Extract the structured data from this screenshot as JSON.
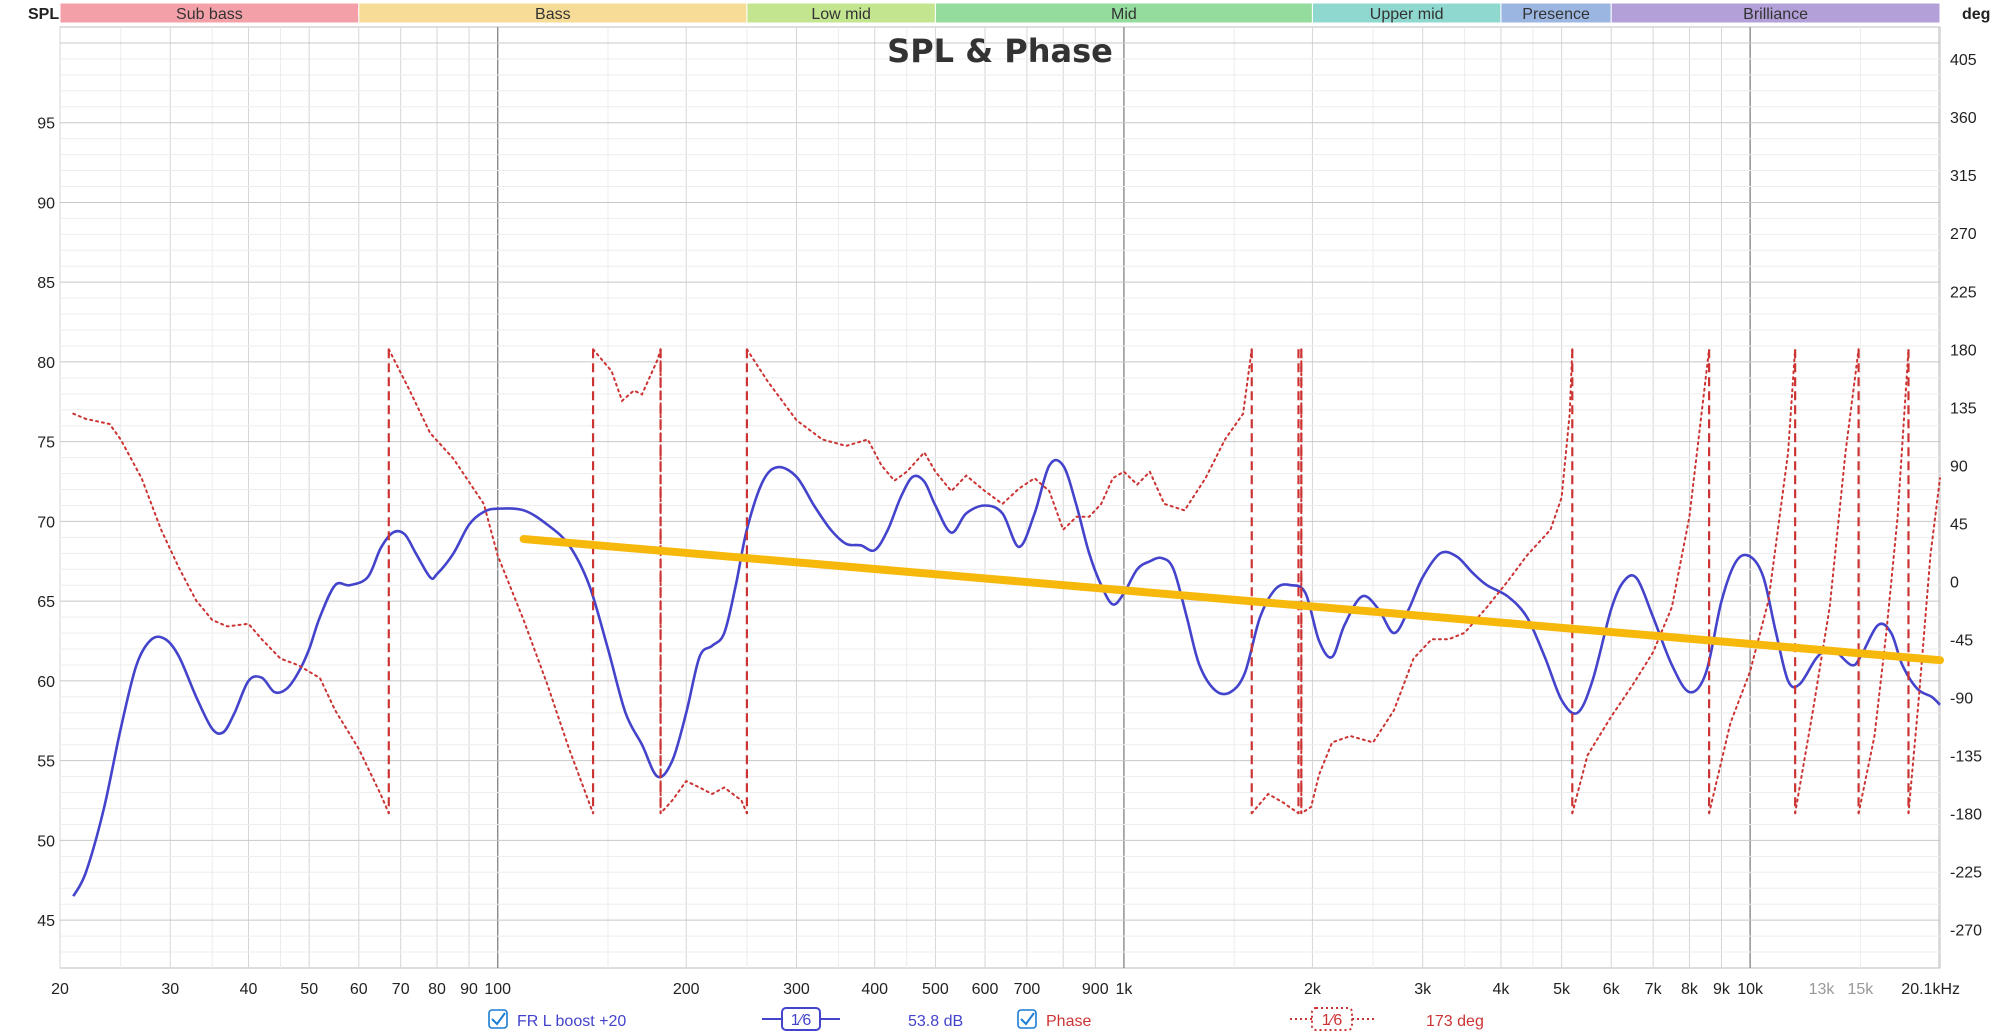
{
  "chart_data": {
    "type": "line",
    "title": "SPL & Phase",
    "y_left_label": "SPL",
    "y_right_label": "deg",
    "x_unit": "Hz",
    "x_scale": "log",
    "xlim": [
      20,
      20100
    ],
    "ylim_left": [
      42,
      101
    ],
    "ylim_right": [
      -300,
      430
    ],
    "grid": true,
    "x_ticks": [
      {
        "v": 20,
        "label": "20"
      },
      {
        "v": 30,
        "label": "30"
      },
      {
        "v": 40,
        "label": "40"
      },
      {
        "v": 50,
        "label": "50"
      },
      {
        "v": 60,
        "label": "60"
      },
      {
        "v": 70,
        "label": "70"
      },
      {
        "v": 80,
        "label": "80"
      },
      {
        "v": 90,
        "label": "90"
      },
      {
        "v": 100,
        "label": "100"
      },
      {
        "v": 200,
        "label": "200"
      },
      {
        "v": 300,
        "label": "300"
      },
      {
        "v": 400,
        "label": "400"
      },
      {
        "v": 500,
        "label": "500"
      },
      {
        "v": 600,
        "label": "600"
      },
      {
        "v": 700,
        "label": "700"
      },
      {
        "v": 900,
        "label": "900"
      },
      {
        "v": 1000,
        "label": "1k"
      },
      {
        "v": 2000,
        "label": "2k"
      },
      {
        "v": 3000,
        "label": "3k"
      },
      {
        "v": 4000,
        "label": "4k"
      },
      {
        "v": 5000,
        "label": "5k"
      },
      {
        "v": 6000,
        "label": "6k"
      },
      {
        "v": 7000,
        "label": "7k"
      },
      {
        "v": 8000,
        "label": "8k"
      },
      {
        "v": 9000,
        "label": "9k"
      },
      {
        "v": 10000,
        "label": "10k"
      },
      {
        "v": 13000,
        "label": "13k",
        "faded": true
      },
      {
        "v": 15000,
        "label": "15k",
        "faded": true
      },
      {
        "v": 20100,
        "label": "20.1kHz"
      }
    ],
    "y_left_ticks": [
      45,
      50,
      55,
      60,
      65,
      70,
      75,
      80,
      85,
      90,
      95
    ],
    "y_right_ticks": [
      -270,
      -225,
      -180,
      -135,
      -90,
      -45,
      0,
      45,
      90,
      135,
      180,
      225,
      270,
      315,
      360,
      405
    ],
    "bands": [
      {
        "label": "Sub bass",
        "from": 20,
        "to": 60,
        "color": "#f4a0a8"
      },
      {
        "label": "Bass",
        "from": 60,
        "to": 250,
        "color": "#f6dc96"
      },
      {
        "label": "Low mid",
        "from": 250,
        "to": 500,
        "color": "#c3e58f"
      },
      {
        "label": "Mid",
        "from": 500,
        "to": 2000,
        "color": "#93dc9e"
      },
      {
        "label": "Upper mid",
        "from": 2000,
        "to": 4000,
        "color": "#8ed8cf"
      },
      {
        "label": "Presence",
        "from": 4000,
        "to": 6000,
        "color": "#9cb6e2"
      },
      {
        "label": "Brilliance",
        "from": 6000,
        "to": 20100,
        "color": "#b3a0d8"
      }
    ],
    "series": [
      {
        "name": "FR L boost +20",
        "axis": "left",
        "color": "#4343cc",
        "points": [
          [
            21,
            46.5
          ],
          [
            22,
            48
          ],
          [
            23.5,
            52
          ],
          [
            25,
            57
          ],
          [
            26.5,
            61
          ],
          [
            28,
            62.6
          ],
          [
            29.5,
            62.6
          ],
          [
            31,
            61.5
          ],
          [
            33,
            59
          ],
          [
            35,
            57
          ],
          [
            36.5,
            56.8
          ],
          [
            38,
            58
          ],
          [
            40,
            60
          ],
          [
            42,
            60.2
          ],
          [
            44,
            59.3
          ],
          [
            46,
            59.5
          ],
          [
            48,
            60.5
          ],
          [
            50,
            62
          ],
          [
            52,
            64
          ],
          [
            55,
            66
          ],
          [
            58,
            66
          ],
          [
            62,
            66.5
          ],
          [
            65,
            68.3
          ],
          [
            68,
            69.3
          ],
          [
            71,
            69.2
          ],
          [
            74,
            68
          ],
          [
            78,
            66.5
          ],
          [
            80,
            66.7
          ],
          [
            85,
            68
          ],
          [
            90,
            69.8
          ],
          [
            95,
            70.6
          ],
          [
            100,
            70.8
          ],
          [
            110,
            70.7
          ],
          [
            120,
            69.8
          ],
          [
            130,
            68.5
          ],
          [
            140,
            66
          ],
          [
            150,
            62
          ],
          [
            160,
            58
          ],
          [
            170,
            56
          ],
          [
            180,
            54
          ],
          [
            190,
            55
          ],
          [
            200,
            58
          ],
          [
            210,
            61.5
          ],
          [
            220,
            62.2
          ],
          [
            230,
            63
          ],
          [
            240,
            66
          ],
          [
            250,
            69.5
          ],
          [
            265,
            72.5
          ],
          [
            280,
            73.4
          ],
          [
            300,
            72.8
          ],
          [
            320,
            71
          ],
          [
            340,
            69.5
          ],
          [
            360,
            68.6
          ],
          [
            380,
            68.5
          ],
          [
            400,
            68.2
          ],
          [
            420,
            69.5
          ],
          [
            440,
            71.5
          ],
          [
            460,
            72.8
          ],
          [
            480,
            72.5
          ],
          [
            500,
            71
          ],
          [
            530,
            69.3
          ],
          [
            560,
            70.5
          ],
          [
            600,
            71
          ],
          [
            640,
            70.5
          ],
          [
            680,
            68.4
          ],
          [
            720,
            70.5
          ],
          [
            760,
            73.5
          ],
          [
            800,
            73.5
          ],
          [
            840,
            71
          ],
          [
            880,
            68
          ],
          [
            920,
            66
          ],
          [
            960,
            64.8
          ],
          [
            1000,
            65.5
          ],
          [
            1050,
            67
          ],
          [
            1100,
            67.5
          ],
          [
            1150,
            67.7
          ],
          [
            1200,
            67
          ],
          [
            1260,
            64
          ],
          [
            1320,
            61
          ],
          [
            1400,
            59.4
          ],
          [
            1480,
            59.3
          ],
          [
            1560,
            60.5
          ],
          [
            1650,
            64
          ],
          [
            1750,
            65.8
          ],
          [
            1850,
            66
          ],
          [
            1950,
            65.5
          ],
          [
            2050,
            62.5
          ],
          [
            2150,
            61.5
          ],
          [
            2250,
            63.5
          ],
          [
            2400,
            65.3
          ],
          [
            2550,
            64.5
          ],
          [
            2700,
            63
          ],
          [
            2850,
            64.5
          ],
          [
            3000,
            66.5
          ],
          [
            3200,
            68
          ],
          [
            3400,
            67.8
          ],
          [
            3600,
            66.8
          ],
          [
            3800,
            66
          ],
          [
            4100,
            65.3
          ],
          [
            4400,
            64
          ],
          [
            4700,
            61.5
          ],
          [
            5000,
            58.8
          ],
          [
            5300,
            58
          ],
          [
            5600,
            60
          ],
          [
            6000,
            64.5
          ],
          [
            6300,
            66.3
          ],
          [
            6600,
            66.4
          ],
          [
            7000,
            64
          ],
          [
            7500,
            61
          ],
          [
            8000,
            59.3
          ],
          [
            8500,
            60.5
          ],
          [
            9000,
            65
          ],
          [
            9500,
            67.5
          ],
          [
            10000,
            67.8
          ],
          [
            10500,
            66.5
          ],
          [
            11000,
            63
          ],
          [
            11500,
            60
          ],
          [
            12000,
            59.8
          ],
          [
            12800,
            61.5
          ],
          [
            13500,
            62
          ],
          [
            14500,
            61
          ],
          [
            15000,
            61.5
          ],
          [
            16000,
            63.5
          ],
          [
            16800,
            63
          ],
          [
            17500,
            61
          ],
          [
            18500,
            59.5
          ],
          [
            19500,
            59
          ],
          [
            20100,
            58.5
          ]
        ]
      },
      {
        "name": "Phase",
        "axis": "right",
        "color": "#cc3333",
        "style": "dotted",
        "points": [
          [
            21,
            130
          ],
          [
            22,
            126
          ],
          [
            24,
            122
          ],
          [
            25,
            110
          ],
          [
            27,
            80
          ],
          [
            29,
            40
          ],
          [
            31,
            10
          ],
          [
            33,
            -15
          ],
          [
            35,
            -30
          ],
          [
            37,
            -35
          ],
          [
            40,
            -33
          ],
          [
            42,
            -45
          ],
          [
            45,
            -60
          ],
          [
            48,
            -65
          ],
          [
            52,
            -75
          ],
          [
            55,
            -100
          ],
          [
            60,
            -130
          ],
          [
            65,
            -165
          ],
          [
            67,
            -180
          ],
          null,
          [
            67,
            180
          ],
          [
            72,
            150
          ],
          [
            78,
            115
          ],
          [
            85,
            95
          ],
          [
            95,
            60
          ],
          [
            100,
            20
          ],
          [
            110,
            -30
          ],
          [
            120,
            -80
          ],
          [
            130,
            -130
          ],
          [
            142,
            -180
          ],
          null,
          [
            142,
            180
          ],
          [
            152,
            163
          ],
          [
            158,
            140
          ],
          [
            165,
            148
          ],
          [
            170,
            145
          ],
          [
            180,
            172
          ],
          [
            182,
            180
          ],
          null,
          [
            182,
            180
          ],
          [
            182,
            -180
          ],
          [
            190,
            -170
          ],
          [
            200,
            -155
          ],
          [
            210,
            -160
          ],
          [
            220,
            -165
          ],
          [
            230,
            -160
          ],
          [
            245,
            -170
          ],
          [
            250,
            -180
          ],
          null,
          [
            250,
            180
          ],
          [
            270,
            155
          ],
          [
            300,
            125
          ],
          [
            330,
            110
          ],
          [
            360,
            105
          ],
          [
            390,
            110
          ],
          [
            410,
            90
          ],
          [
            430,
            78
          ],
          [
            450,
            85
          ],
          [
            480,
            100
          ],
          [
            500,
            85
          ],
          [
            530,
            70
          ],
          [
            560,
            82
          ],
          [
            600,
            70
          ],
          [
            640,
            60
          ],
          [
            680,
            72
          ],
          [
            720,
            80
          ],
          [
            760,
            70
          ],
          [
            800,
            40
          ],
          [
            840,
            50
          ],
          [
            880,
            50
          ],
          [
            920,
            60
          ],
          [
            960,
            80
          ],
          [
            1000,
            85
          ],
          [
            1050,
            75
          ],
          [
            1100,
            85
          ],
          [
            1160,
            60
          ],
          [
            1250,
            55
          ],
          [
            1350,
            80
          ],
          [
            1450,
            110
          ],
          [
            1550,
            130
          ],
          [
            1600,
            180
          ],
          null,
          [
            1600,
            -180
          ],
          [
            1700,
            -165
          ],
          [
            1800,
            -172
          ],
          [
            1900,
            -180
          ],
          null,
          [
            1920,
            180
          ],
          [
            1920,
            -180
          ],
          [
            1990,
            -175
          ],
          [
            2050,
            -150
          ],
          [
            2150,
            -125
          ],
          [
            2300,
            -120
          ],
          [
            2500,
            -125
          ],
          [
            2700,
            -100
          ],
          [
            2900,
            -60
          ],
          [
            3100,
            -45
          ],
          [
            3300,
            -45
          ],
          [
            3500,
            -40
          ],
          [
            3800,
            -20
          ],
          [
            4100,
            0
          ],
          [
            4400,
            20
          ],
          [
            4800,
            40
          ],
          [
            5000,
            65
          ],
          [
            5150,
            130
          ],
          [
            5200,
            180
          ],
          null,
          [
            5200,
            -180
          ],
          [
            5500,
            -135
          ],
          [
            6000,
            -105
          ],
          [
            6500,
            -80
          ],
          [
            7000,
            -55
          ],
          [
            7500,
            -20
          ],
          [
            8000,
            50
          ],
          [
            8600,
            180
          ],
          null,
          [
            8600,
            -180
          ],
          [
            9300,
            -110
          ],
          [
            10000,
            -70
          ],
          [
            10700,
            -15
          ],
          [
            11500,
            100
          ],
          [
            11800,
            180
          ],
          null,
          [
            11800,
            -180
          ],
          [
            12600,
            -100
          ],
          [
            13400,
            -20
          ],
          [
            14200,
            100
          ],
          [
            14900,
            180
          ],
          null,
          [
            14900,
            -180
          ],
          [
            15800,
            -120
          ],
          [
            16500,
            -40
          ],
          [
            17200,
            50
          ],
          [
            17900,
            180
          ],
          null,
          [
            17900,
            -180
          ],
          [
            18600,
            -90
          ],
          [
            19400,
            20
          ],
          [
            20100,
            80
          ]
        ],
        "wraps": [
          67,
          142,
          182,
          250,
          1600,
          1900,
          1920,
          5200,
          8600,
          11800,
          14900,
          17900
        ]
      },
      {
        "name": "overlay",
        "axis": "left",
        "color": "#f7b80c",
        "points": [
          [
            110,
            68.9
          ],
          [
            20100,
            61.3
          ]
        ]
      }
    ]
  },
  "legend": {
    "fr_label": "FR L boost +20",
    "fr_smoothing": "1⁄6",
    "fr_value": "53.8 dB",
    "phase_label": "Phase",
    "phase_smoothing": "1⁄6",
    "phase_value": "173 deg",
    "colors": {
      "fr": "#4343cc",
      "phase": "#cc3333",
      "check": "#1a7cd4"
    }
  }
}
